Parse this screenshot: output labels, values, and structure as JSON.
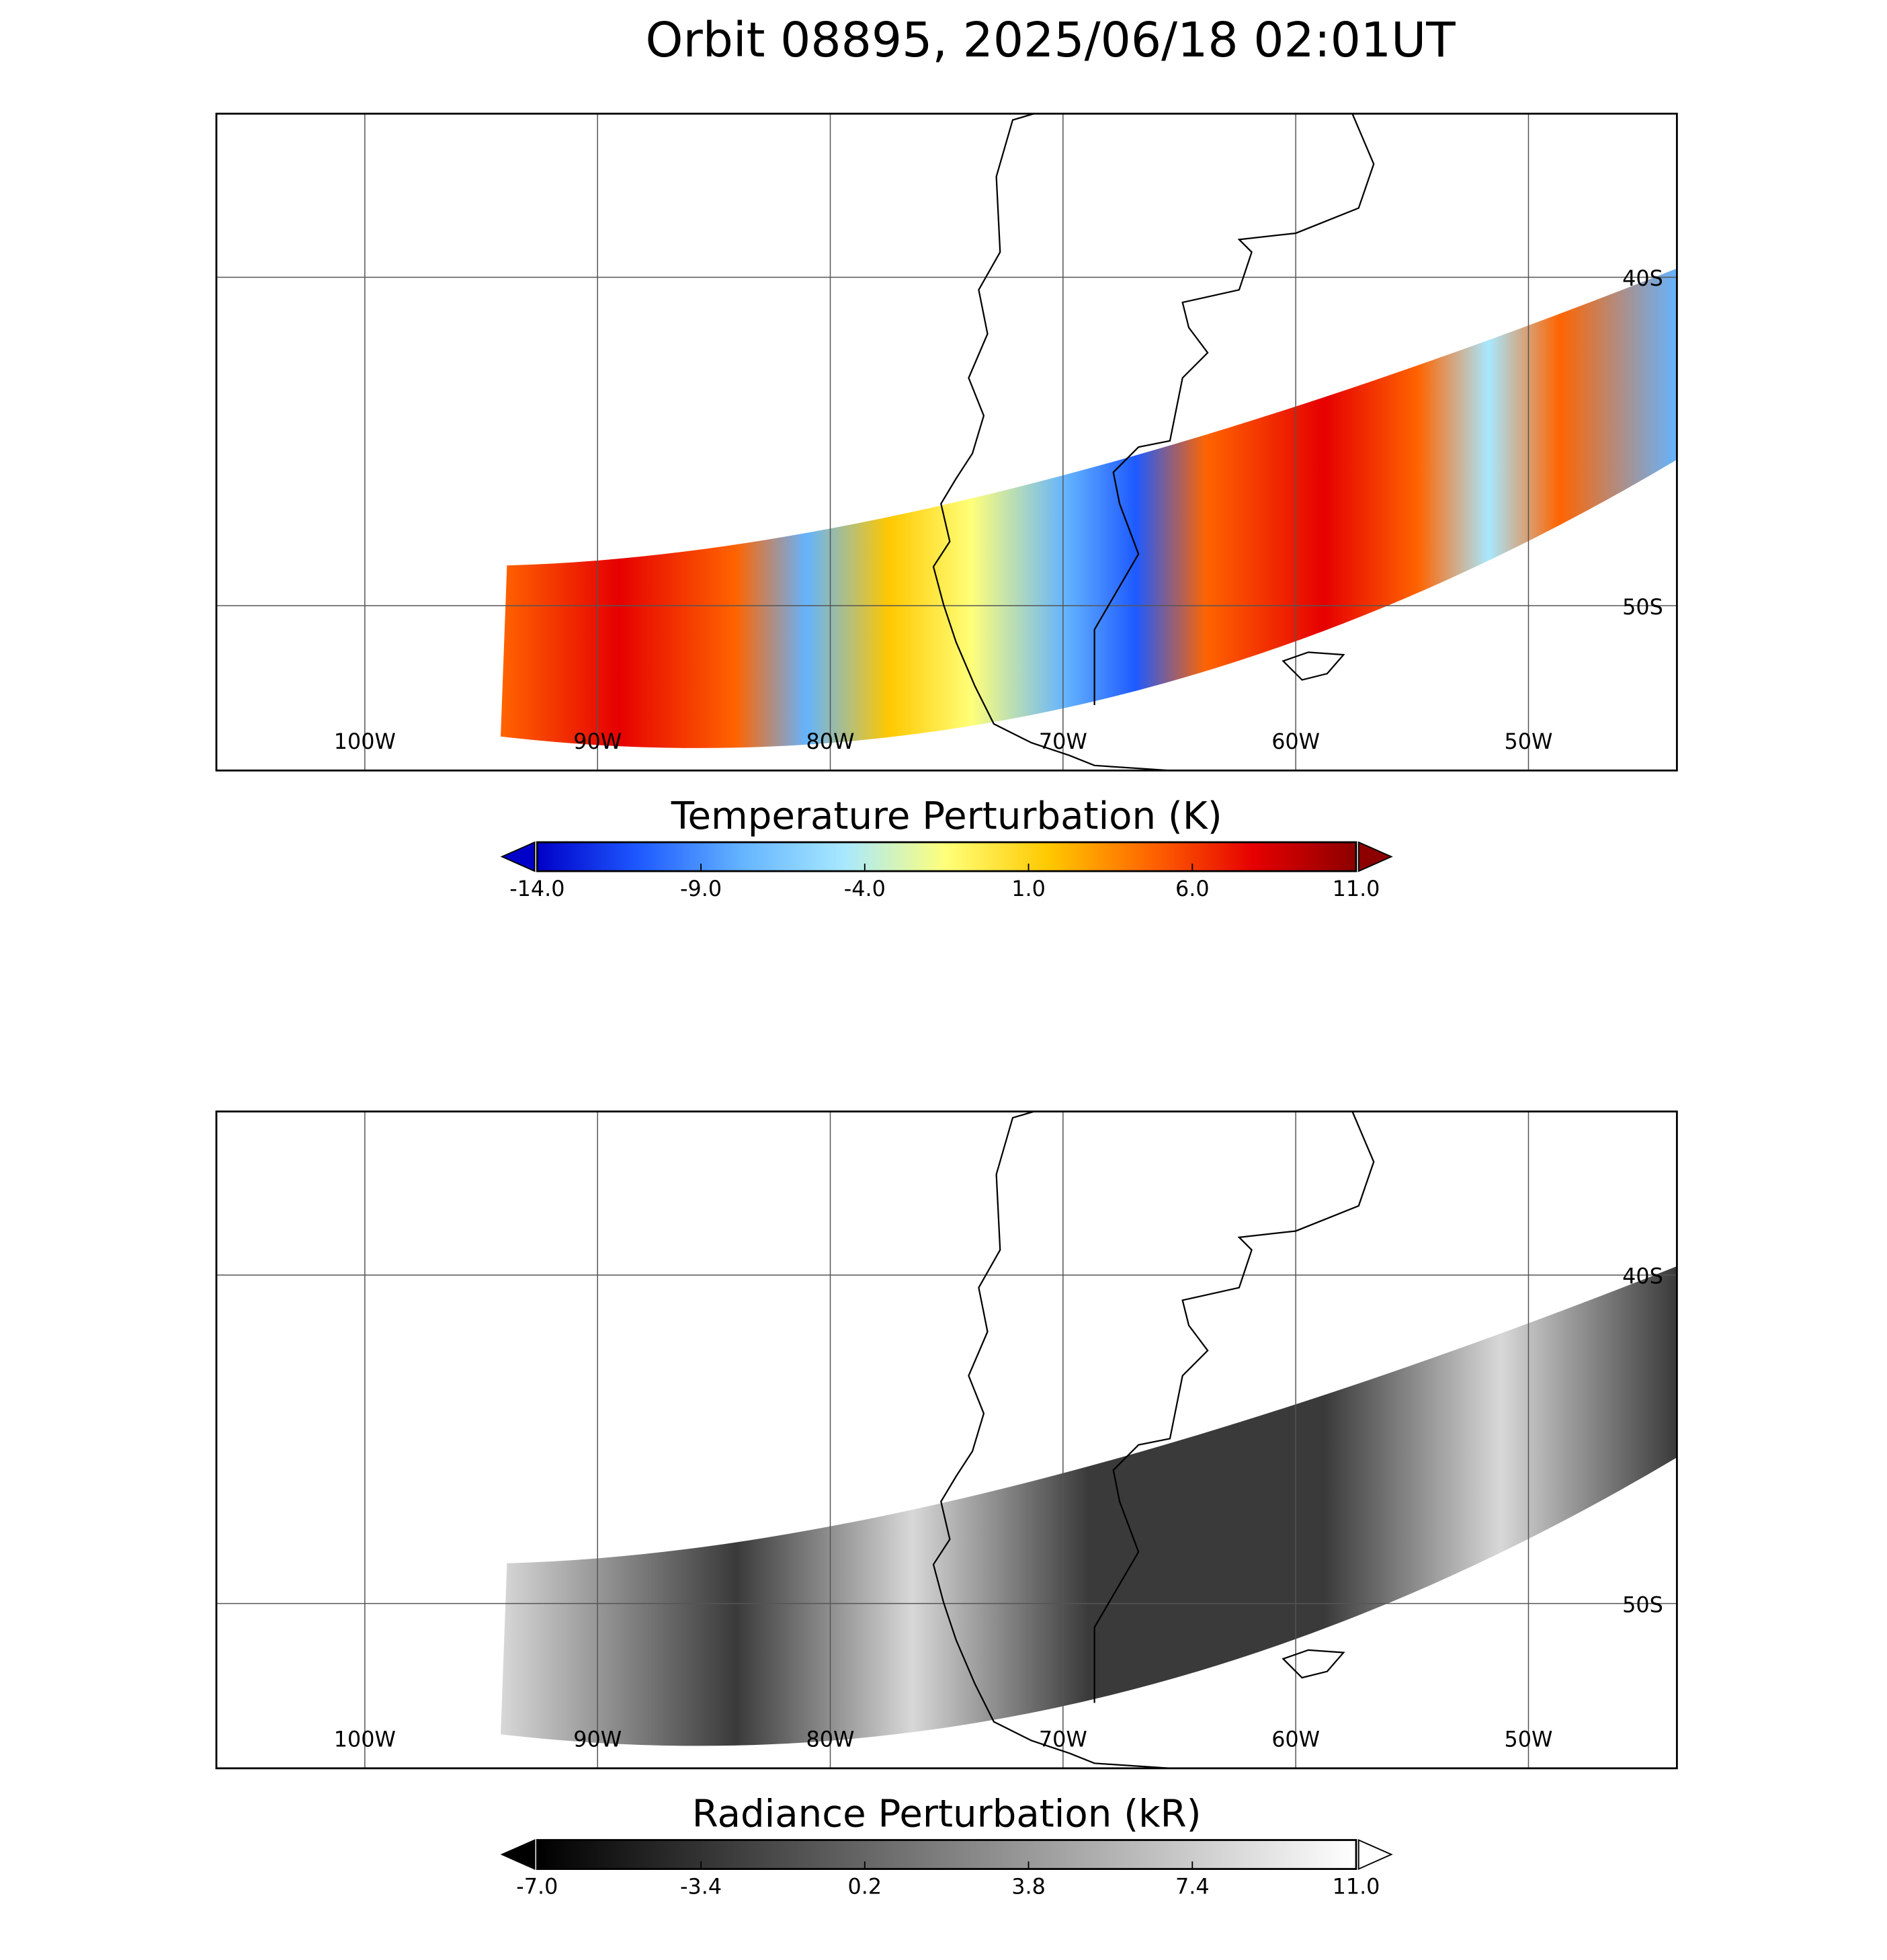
{
  "title": "Orbit 08895, 2025/06/18 02:01UT",
  "panels": [
    {
      "lon_labels": [
        "100W",
        "90W",
        "80W",
        "70W",
        "60W",
        "50W"
      ],
      "lat_labels": [
        "40S",
        "50S"
      ],
      "colorbar": {
        "title": "Temperature Perturbation (K)",
        "lim": [
          -14,
          11
        ],
        "ticks": [
          {
            "value": -14,
            "label": "-14.0"
          },
          {
            "value": -9,
            "label": "-9.0"
          },
          {
            "value": -4,
            "label": "-4.0"
          },
          {
            "value": 1,
            "label": "1.0"
          },
          {
            "value": 6,
            "label": "6.0"
          },
          {
            "value": 11,
            "label": "11.0"
          }
        ],
        "colormap": [
          "#0000c8",
          "#1e5aff",
          "#64b4ff",
          "#a8e8ff",
          "#ffff78",
          "#ffc800",
          "#ff6400",
          "#e60000",
          "#8c0000"
        ]
      }
    },
    {
      "lon_labels": [
        "100W",
        "90W",
        "80W",
        "70W",
        "60W",
        "50W"
      ],
      "lat_labels": [
        "40S",
        "50S"
      ],
      "colorbar": {
        "title": "Radiance Perturbation (kR)",
        "lim": [
          -7,
          11
        ],
        "ticks": [
          {
            "value": -7,
            "label": "-7.0"
          },
          {
            "value": -3.4,
            "label": "-3.4"
          },
          {
            "value": 0.2,
            "label": "0.2"
          },
          {
            "value": 3.8,
            "label": "3.8"
          },
          {
            "value": 7.4,
            "label": "7.4"
          },
          {
            "value": 11,
            "label": "11.0"
          }
        ],
        "colormap": [
          "#000000",
          "#ffffff"
        ]
      }
    }
  ]
}
